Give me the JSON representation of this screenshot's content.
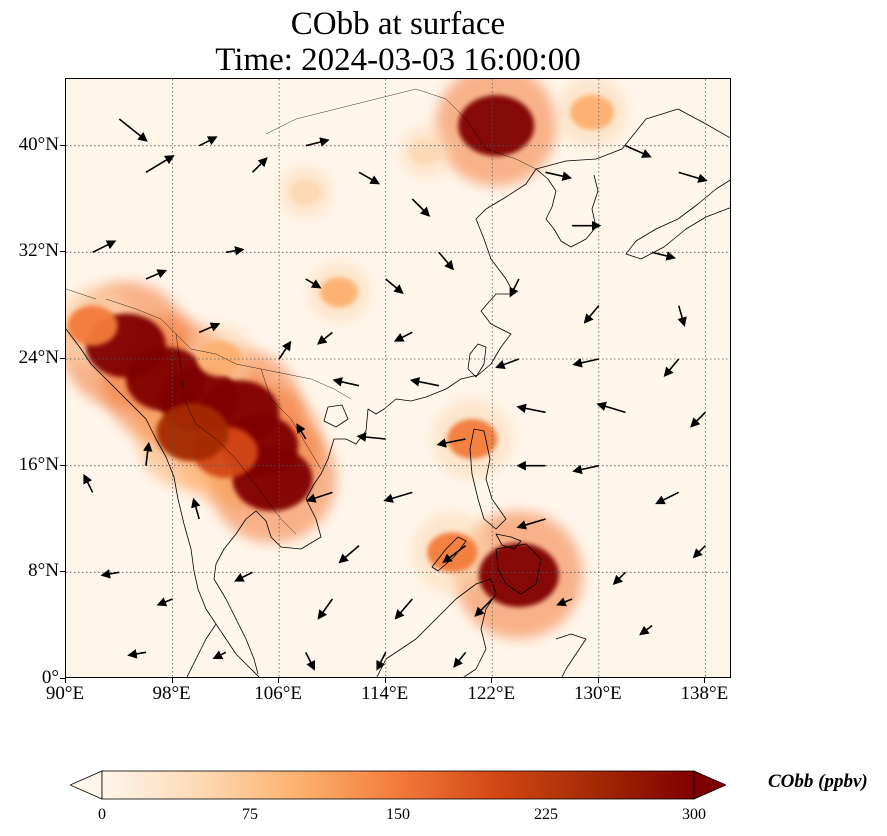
{
  "title": {
    "line1": "CObb at surface",
    "line2": "Time: 2024-03-03 16:00:00"
  },
  "map": {
    "extent": {
      "lon": [
        90,
        140
      ],
      "lat": [
        0,
        45
      ]
    },
    "x_ticks": [
      {
        "value": 90,
        "label": "90°E"
      },
      {
        "value": 98,
        "label": "98°E"
      },
      {
        "value": 106,
        "label": "106°E"
      },
      {
        "value": 114,
        "label": "114°E"
      },
      {
        "value": 122,
        "label": "122°E"
      },
      {
        "value": 130,
        "label": "130°E"
      },
      {
        "value": 138,
        "label": "138°E"
      }
    ],
    "y_ticks": [
      {
        "value": 0,
        "label": "0°"
      },
      {
        "value": 8,
        "label": "8°N"
      },
      {
        "value": 16,
        "label": "16°N"
      },
      {
        "value": 24,
        "label": "24°N"
      },
      {
        "value": 32,
        "label": "32°N"
      },
      {
        "value": 40,
        "label": "40°N"
      }
    ],
    "gridlines": true,
    "colors": {
      "background": "#fff5eb",
      "coast": "#000000",
      "grid": "#555555"
    }
  },
  "colorbar": {
    "label": "CObb (ppbv)",
    "min": 0,
    "max": 300,
    "ticks": [
      {
        "value": 0,
        "label": "0"
      },
      {
        "value": 75,
        "label": "75"
      },
      {
        "value": 150,
        "label": "150"
      },
      {
        "value": 225,
        "label": "225"
      },
      {
        "value": 300,
        "label": "300"
      }
    ],
    "colors": [
      "#fff5eb",
      "#fdd9b4",
      "#fdb06f",
      "#f27b3a",
      "#d44615",
      "#a32a04",
      "#7f0000"
    ],
    "extend": "both"
  },
  "chart_data": {
    "type": "heatmap",
    "variable": "CObb",
    "units": "ppbv",
    "hotspots": [
      {
        "lon": 97.5,
        "lat": 22.5,
        "value": 300
      },
      {
        "lon": 100.0,
        "lat": 21.0,
        "value": 300
      },
      {
        "lon": 103.0,
        "lat": 20.0,
        "value": 300
      },
      {
        "lon": 104.5,
        "lat": 17.5,
        "value": 290
      },
      {
        "lon": 105.5,
        "lat": 15.0,
        "value": 300
      },
      {
        "lon": 102.0,
        "lat": 17.0,
        "value": 220
      },
      {
        "lon": 99.5,
        "lat": 18.5,
        "value": 260
      },
      {
        "lon": 94.5,
        "lat": 25.0,
        "value": 300
      },
      {
        "lon": 92.0,
        "lat": 26.5,
        "value": 150
      },
      {
        "lon": 101.5,
        "lat": 24.0,
        "value": 120
      },
      {
        "lon": 122.3,
        "lat": 41.5,
        "value": 280
      },
      {
        "lon": 124.0,
        "lat": 7.8,
        "value": 300
      },
      {
        "lon": 119.0,
        "lat": 9.5,
        "value": 150
      },
      {
        "lon": 120.5,
        "lat": 18.0,
        "value": 150
      },
      {
        "lon": 110.5,
        "lat": 29.0,
        "value": 90
      },
      {
        "lon": 108.0,
        "lat": 36.5,
        "value": 60
      },
      {
        "lon": 129.5,
        "lat": 42.5,
        "value": 120
      },
      {
        "lon": 117.0,
        "lat": 39.5,
        "value": 60
      }
    ],
    "wind_vectors": [
      {
        "lon": 94,
        "lat": 42,
        "u": 1,
        "v": -0.8
      },
      {
        "lon": 96,
        "lat": 38,
        "u": 1,
        "v": 0.6
      },
      {
        "lon": 100,
        "lat": 40,
        "u": 0.6,
        "v": 0.3
      },
      {
        "lon": 104,
        "lat": 38,
        "u": 0.5,
        "v": 0.5
      },
      {
        "lon": 108,
        "lat": 40,
        "u": 0.8,
        "v": 0.2
      },
      {
        "lon": 112,
        "lat": 38,
        "u": 0.7,
        "v": -0.4
      },
      {
        "lon": 116,
        "lat": 36,
        "u": 0.6,
        "v": -0.6
      },
      {
        "lon": 126,
        "lat": 38,
        "u": 0.9,
        "v": -0.2
      },
      {
        "lon": 132,
        "lat": 40,
        "u": 0.9,
        "v": -0.4
      },
      {
        "lon": 136,
        "lat": 38,
        "u": 1,
        "v": -0.3
      },
      {
        "lon": 128,
        "lat": 34,
        "u": 1,
        "v": 0
      },
      {
        "lon": 134,
        "lat": 32,
        "u": 0.8,
        "v": -0.2
      },
      {
        "lon": 92,
        "lat": 32,
        "u": 0.8,
        "v": 0.4
      },
      {
        "lon": 96,
        "lat": 30,
        "u": 0.7,
        "v": 0.3
      },
      {
        "lon": 102,
        "lat": 32,
        "u": 0.6,
        "v": 0.1
      },
      {
        "lon": 108,
        "lat": 30,
        "u": 0.5,
        "v": -0.3
      },
      {
        "lon": 114,
        "lat": 30,
        "u": 0.6,
        "v": -0.5
      },
      {
        "lon": 118,
        "lat": 32,
        "u": 0.5,
        "v": -0.6
      },
      {
        "lon": 124,
        "lat": 30,
        "u": -0.3,
        "v": -0.6
      },
      {
        "lon": 130,
        "lat": 28,
        "u": -0.5,
        "v": -0.6
      },
      {
        "lon": 136,
        "lat": 28,
        "u": 0.2,
        "v": -0.7
      },
      {
        "lon": 110,
        "lat": 26,
        "u": -0.5,
        "v": -0.4
      },
      {
        "lon": 116,
        "lat": 26,
        "u": -0.6,
        "v": -0.3
      },
      {
        "lon": 124,
        "lat": 24,
        "u": -0.8,
        "v": -0.3
      },
      {
        "lon": 130,
        "lat": 24,
        "u": -0.9,
        "v": -0.2
      },
      {
        "lon": 136,
        "lat": 24,
        "u": -0.5,
        "v": -0.6
      },
      {
        "lon": 112,
        "lat": 22,
        "u": -0.9,
        "v": 0.2
      },
      {
        "lon": 118,
        "lat": 22,
        "u": -1,
        "v": 0.2
      },
      {
        "lon": 126,
        "lat": 20,
        "u": -1,
        "v": 0.2
      },
      {
        "lon": 132,
        "lat": 20,
        "u": -1,
        "v": 0.3
      },
      {
        "lon": 114,
        "lat": 18,
        "u": -1,
        "v": 0.1
      },
      {
        "lon": 120,
        "lat": 18,
        "u": -1,
        "v": -0.2
      },
      {
        "lon": 126,
        "lat": 16,
        "u": -1,
        "v": 0
      },
      {
        "lon": 130,
        "lat": 16,
        "u": -0.9,
        "v": -0.2
      },
      {
        "lon": 136,
        "lat": 14,
        "u": -0.8,
        "v": -0.4
      },
      {
        "lon": 110,
        "lat": 14,
        "u": -0.9,
        "v": -0.3
      },
      {
        "lon": 116,
        "lat": 14,
        "u": -1,
        "v": -0.3
      },
      {
        "lon": 120,
        "lat": 10,
        "u": -0.8,
        "v": -0.6
      },
      {
        "lon": 126,
        "lat": 12,
        "u": -1,
        "v": -0.3
      },
      {
        "lon": 112,
        "lat": 10,
        "u": -0.7,
        "v": -0.6
      },
      {
        "lon": 116,
        "lat": 6,
        "u": -0.6,
        "v": -0.7
      },
      {
        "lon": 110,
        "lat": 6,
        "u": -0.5,
        "v": -0.7
      },
      {
        "lon": 104,
        "lat": 8,
        "u": -0.6,
        "v": -0.3
      },
      {
        "lon": 98,
        "lat": 6,
        "u": -0.5,
        "v": -0.2
      },
      {
        "lon": 94,
        "lat": 8,
        "u": -0.6,
        "v": -0.1
      },
      {
        "lon": 92,
        "lat": 14,
        "u": -0.3,
        "v": 0.6
      },
      {
        "lon": 96,
        "lat": 16,
        "u": 0.1,
        "v": 0.8
      },
      {
        "lon": 100,
        "lat": 12,
        "u": -0.2,
        "v": 0.7
      },
      {
        "lon": 108,
        "lat": 18,
        "u": -0.3,
        "v": 0.5
      },
      {
        "lon": 106,
        "lat": 24,
        "u": 0.4,
        "v": 0.6
      },
      {
        "lon": 100,
        "lat": 26,
        "u": 0.7,
        "v": 0.3
      },
      {
        "lon": 122,
        "lat": 6,
        "u": -0.6,
        "v": -0.6
      },
      {
        "lon": 128,
        "lat": 6,
        "u": -0.5,
        "v": -0.2
      },
      {
        "lon": 132,
        "lat": 8,
        "u": -0.4,
        "v": -0.4
      },
      {
        "lon": 108,
        "lat": 2,
        "u": 0.3,
        "v": -0.6
      },
      {
        "lon": 114,
        "lat": 2,
        "u": -0.3,
        "v": -0.6
      },
      {
        "lon": 120,
        "lat": 2,
        "u": -0.4,
        "v": -0.5
      },
      {
        "lon": 102,
        "lat": 2,
        "u": -0.4,
        "v": -0.2
      },
      {
        "lon": 96,
        "lat": 2,
        "u": -0.6,
        "v": -0.1
      },
      {
        "lon": 134,
        "lat": 4,
        "u": -0.4,
        "v": -0.3
      },
      {
        "lon": 138,
        "lat": 10,
        "u": -0.4,
        "v": -0.4
      },
      {
        "lon": 138,
        "lat": 20,
        "u": -0.5,
        "v": -0.5
      }
    ]
  }
}
